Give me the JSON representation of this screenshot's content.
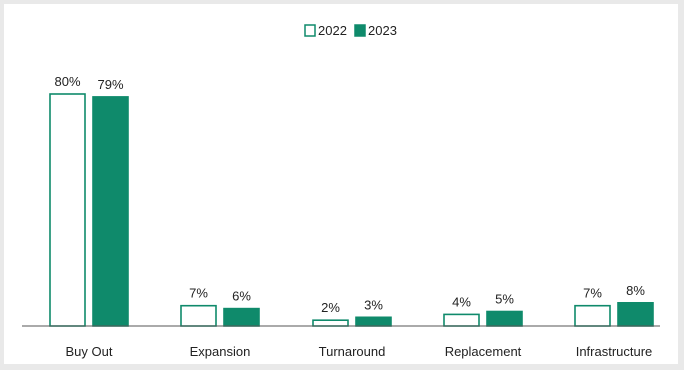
{
  "chart_data": {
    "type": "bar",
    "categories": [
      "Buy Out",
      "Expansion",
      "Turnaround",
      "Replacement",
      "Infrastructure"
    ],
    "series": [
      {
        "name": "2022",
        "values": [
          80,
          7,
          2,
          4,
          7
        ],
        "style": "outline"
      },
      {
        "name": "2023",
        "values": [
          79,
          6,
          3,
          5,
          8
        ],
        "style": "filled"
      }
    ],
    "value_labels": [
      [
        "80%",
        "7%",
        "2%",
        "4%",
        "7%"
      ],
      [
        "79%",
        "6%",
        "3%",
        "5%",
        "8%"
      ]
    ],
    "value_suffix": "%",
    "title": "",
    "xlabel": "",
    "ylabel": "",
    "ylim": [
      0,
      80
    ],
    "grid": false,
    "legend": "top-center",
    "colors": {
      "accent": "#0f8a6b",
      "outline_fill": "#ffffff",
      "axis": "#555555"
    }
  }
}
